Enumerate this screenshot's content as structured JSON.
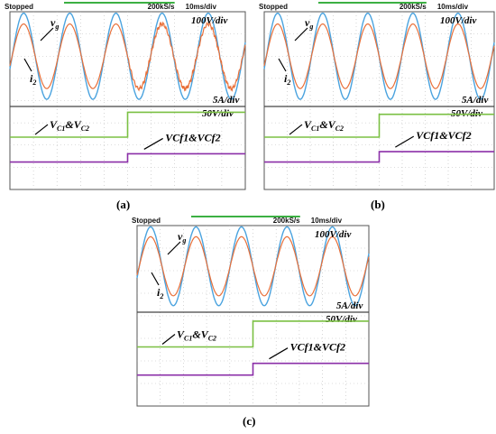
{
  "figure": {
    "captions": [
      "(a)",
      "(b)",
      "(c)"
    ]
  },
  "chart_data": [
    {
      "panel": "(a)",
      "type": "line",
      "status": "Stopped",
      "sample_rate": "200kS/s",
      "time_scale": "10ms/div",
      "upper": {
        "voltage_scale": "100V/div",
        "current_scale": "5A/div",
        "series": [
          {
            "label": "v",
            "label_sub": "g",
            "color": "#4aa3df",
            "peak_divs": 2.0,
            "cycles": 5.1
          },
          {
            "label": "i",
            "label_sub": "2",
            "color": "#e8703a",
            "peak_divs": 1.5,
            "cycles": 5.1,
            "distortion": "noisy after step"
          }
        ]
      },
      "lower": {
        "scale": "50V/div",
        "series": [
          {
            "label": "V",
            "label_sub": "C1",
            "label_mid": "&V",
            "label_sub2": "C2",
            "color": "#7bc043",
            "before_divs": 1.0,
            "after_divs": 2.2,
            "step_at_fraction": 0.5
          },
          {
            "label": "VCf1&VCf2",
            "color": "#8b2fa8",
            "before_divs": -0.2,
            "after_divs": 0.2,
            "step_at_fraction": 0.5
          }
        ]
      }
    },
    {
      "panel": "(b)",
      "type": "line",
      "status": "Stopped",
      "sample_rate": "200kS/s",
      "time_scale": "10ms/div",
      "upper": {
        "voltage_scale": "100V/div",
        "current_scale": "5A/div",
        "series": [
          {
            "label": "v",
            "label_sub": "g",
            "color": "#4aa3df",
            "peak_divs": 2.0,
            "cycles": 5.1
          },
          {
            "label": "i",
            "label_sub": "2",
            "color": "#e8703a",
            "peak_divs": 1.5,
            "cycles": 5.1
          }
        ]
      },
      "lower": {
        "scale": "50V/div",
        "series": [
          {
            "label": "V",
            "label_sub": "C1",
            "label_mid": "&V",
            "label_sub2": "C2",
            "color": "#7bc043",
            "before_divs": 1.0,
            "after_divs": 2.1,
            "step_at_fraction": 0.5
          },
          {
            "label": "VCf1&VCf2",
            "color": "#8b2fa8",
            "before_divs": -0.2,
            "after_divs": 0.3,
            "step_at_fraction": 0.5
          }
        ]
      }
    },
    {
      "panel": "(c)",
      "type": "line",
      "status": "Stopped",
      "sample_rate": "200kS/s",
      "time_scale": "10ms/div",
      "upper": {
        "voltage_scale": "100V/div",
        "current_scale": "5A/div",
        "series": [
          {
            "label": "v",
            "label_sub": "g",
            "color": "#4aa3df",
            "peak_divs": 2.0,
            "cycles": 5.1
          },
          {
            "label": "i",
            "label_sub": "2",
            "color": "#e8703a",
            "peak_divs": 1.5,
            "cycles": 5.1
          }
        ]
      },
      "lower": {
        "scale": "50V/div",
        "series": [
          {
            "label": "V",
            "label_sub": "C1",
            "label_mid": "&V",
            "label_sub2": "C2",
            "color": "#7bc043",
            "before_divs": 1.0,
            "after_divs": 2.1,
            "step_at_fraction": 0.5
          },
          {
            "label": "VCf1&VCf2",
            "color": "#8b2fa8",
            "before_divs": -0.2,
            "after_divs": 0.3,
            "step_at_fraction": 0.5
          }
        ]
      }
    }
  ]
}
